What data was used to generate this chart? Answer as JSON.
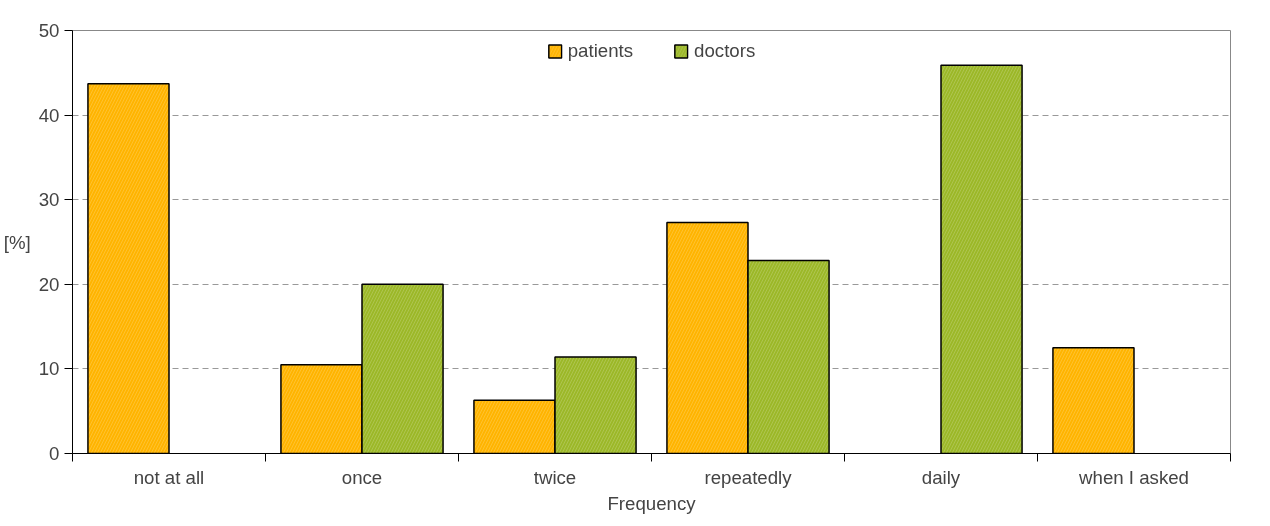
{
  "chart_data": {
    "type": "bar",
    "xlabel": "Frequency",
    "ylabel": "[%]",
    "categories": [
      "not at all",
      "once",
      "twice",
      "repeatedly",
      "daily",
      "when I asked"
    ],
    "series": [
      {
        "name": "patients",
        "color": "#ffb400",
        "values": [
          43.7,
          10.5,
          6.3,
          27.3,
          null,
          12.5
        ]
      },
      {
        "name": "doctors",
        "color": "#9cb828",
        "values": [
          null,
          20,
          11.4,
          22.8,
          45.9,
          null
        ]
      }
    ],
    "ylim": [
      0,
      50
    ],
    "yticks": [
      0,
      10,
      20,
      30,
      40,
      50
    ],
    "grid": "y",
    "legend": "top"
  }
}
